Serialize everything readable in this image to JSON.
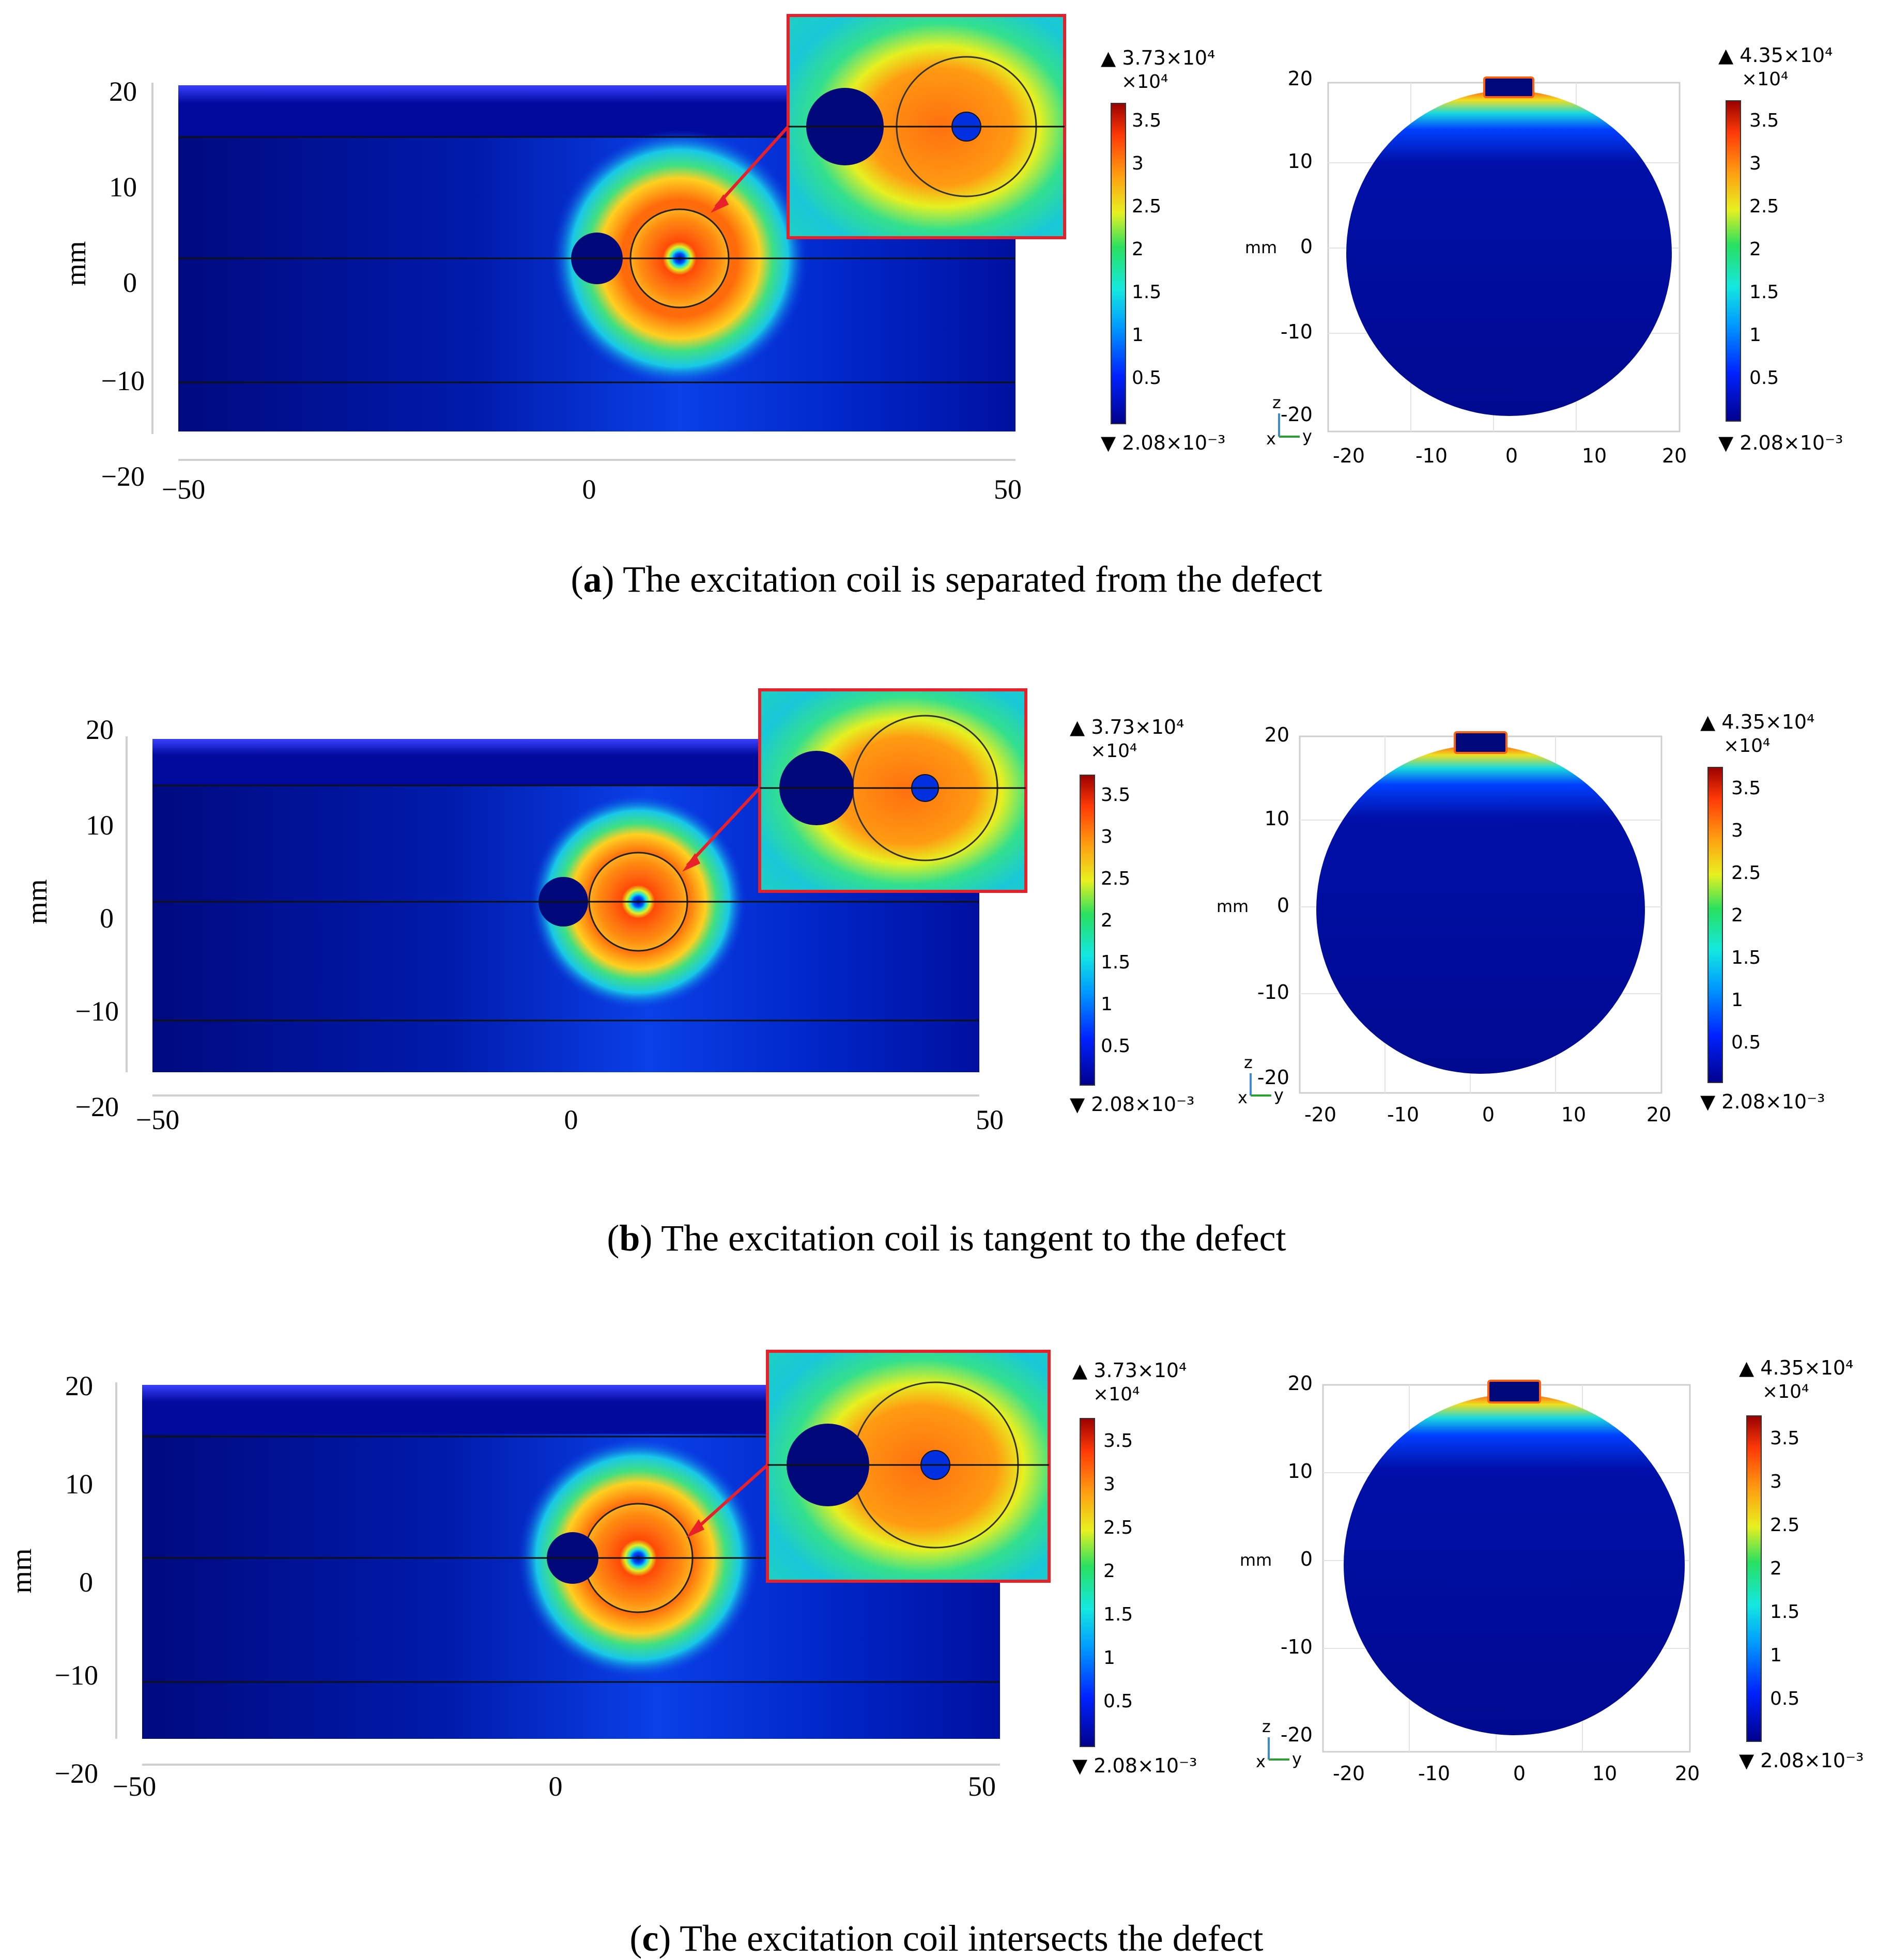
{
  "panels": [
    {
      "letter": "a",
      "caption": "The excitation coil is separated from the defect",
      "left_plot": {
        "ylabel": "mm",
        "yticks": [
          "20",
          "10",
          "0",
          "−10",
          "−20"
        ],
        "xticks": [
          "−50",
          "0",
          "50"
        ]
      },
      "left_colorbar": {
        "max": "▲ 3.73×10⁴",
        "unit": "×10⁴",
        "ticks": [
          "3.5",
          "3",
          "2.5",
          "2",
          "1.5",
          "1",
          "0.5"
        ],
        "min": "▼ 2.08×10⁻³"
      },
      "right_plot": {
        "ylabel": "mm",
        "yticks": [
          "20",
          "10",
          "0",
          "-10",
          "-20"
        ],
        "xticks": [
          "-20",
          "-10",
          "0",
          "10",
          "20"
        ],
        "axis_z": "z",
        "axis_x": "x",
        "axis_y": "y"
      },
      "right_colorbar": {
        "max": "▲ 4.35×10⁴",
        "unit": "×10⁴",
        "ticks": [
          "3.5",
          "3",
          "2.5",
          "2",
          "1.5",
          "1",
          "0.5"
        ],
        "min": "▼ 2.08×10⁻³"
      }
    },
    {
      "letter": "b",
      "caption": "The excitation coil is tangent to the defect",
      "left_plot": {
        "ylabel": "mm",
        "yticks": [
          "20",
          "10",
          "0",
          "−10",
          "−20"
        ],
        "xticks": [
          "−50",
          "0",
          "50"
        ]
      },
      "left_colorbar": {
        "max": "▲ 3.73×10⁴",
        "unit": "×10⁴",
        "ticks": [
          "3.5",
          "3",
          "2.5",
          "2",
          "1.5",
          "1",
          "0.5"
        ],
        "min": "▼ 2.08×10⁻³"
      },
      "right_plot": {
        "ylabel": "mm",
        "yticks": [
          "20",
          "10",
          "0",
          "-10",
          "-20"
        ],
        "xticks": [
          "-20",
          "-10",
          "0",
          "10",
          "20"
        ],
        "axis_z": "z",
        "axis_x": "x",
        "axis_y": "y"
      },
      "right_colorbar": {
        "max": "▲ 4.35×10⁴",
        "unit": "×10⁴",
        "ticks": [
          "3.5",
          "3",
          "2.5",
          "2",
          "1.5",
          "1",
          "0.5"
        ],
        "min": "▼ 2.08×10⁻³"
      }
    },
    {
      "letter": "c",
      "caption": "The excitation coil intersects the defect",
      "left_plot": {
        "ylabel": "mm",
        "yticks": [
          "20",
          "10",
          "0",
          "−10",
          "−20"
        ],
        "xticks": [
          "−50",
          "0",
          "50"
        ]
      },
      "left_colorbar": {
        "max": "▲ 3.73×10⁴",
        "unit": "×10⁴",
        "ticks": [
          "3.5",
          "3",
          "2.5",
          "2",
          "1.5",
          "1",
          "0.5"
        ],
        "min": "▼ 2.08×10⁻³"
      },
      "right_plot": {
        "ylabel": "mm",
        "yticks": [
          "20",
          "10",
          "0",
          "-10",
          "-20"
        ],
        "xticks": [
          "-20",
          "-10",
          "0",
          "10",
          "20"
        ],
        "axis_z": "z",
        "axis_x": "x",
        "axis_y": "y"
      },
      "right_colorbar": {
        "max": "▲ 4.35×10⁴",
        "unit": "×10⁴",
        "ticks": [
          "3.5",
          "3",
          "2.5",
          "2",
          "1.5",
          "1",
          "0.5"
        ],
        "min": "▼ 2.08×10⁻³"
      }
    }
  ],
  "colors": {
    "field_low": "#000a8c",
    "field_mid": "#19e0d6",
    "field_high": "#d40000",
    "callout": "#e8202a"
  }
}
